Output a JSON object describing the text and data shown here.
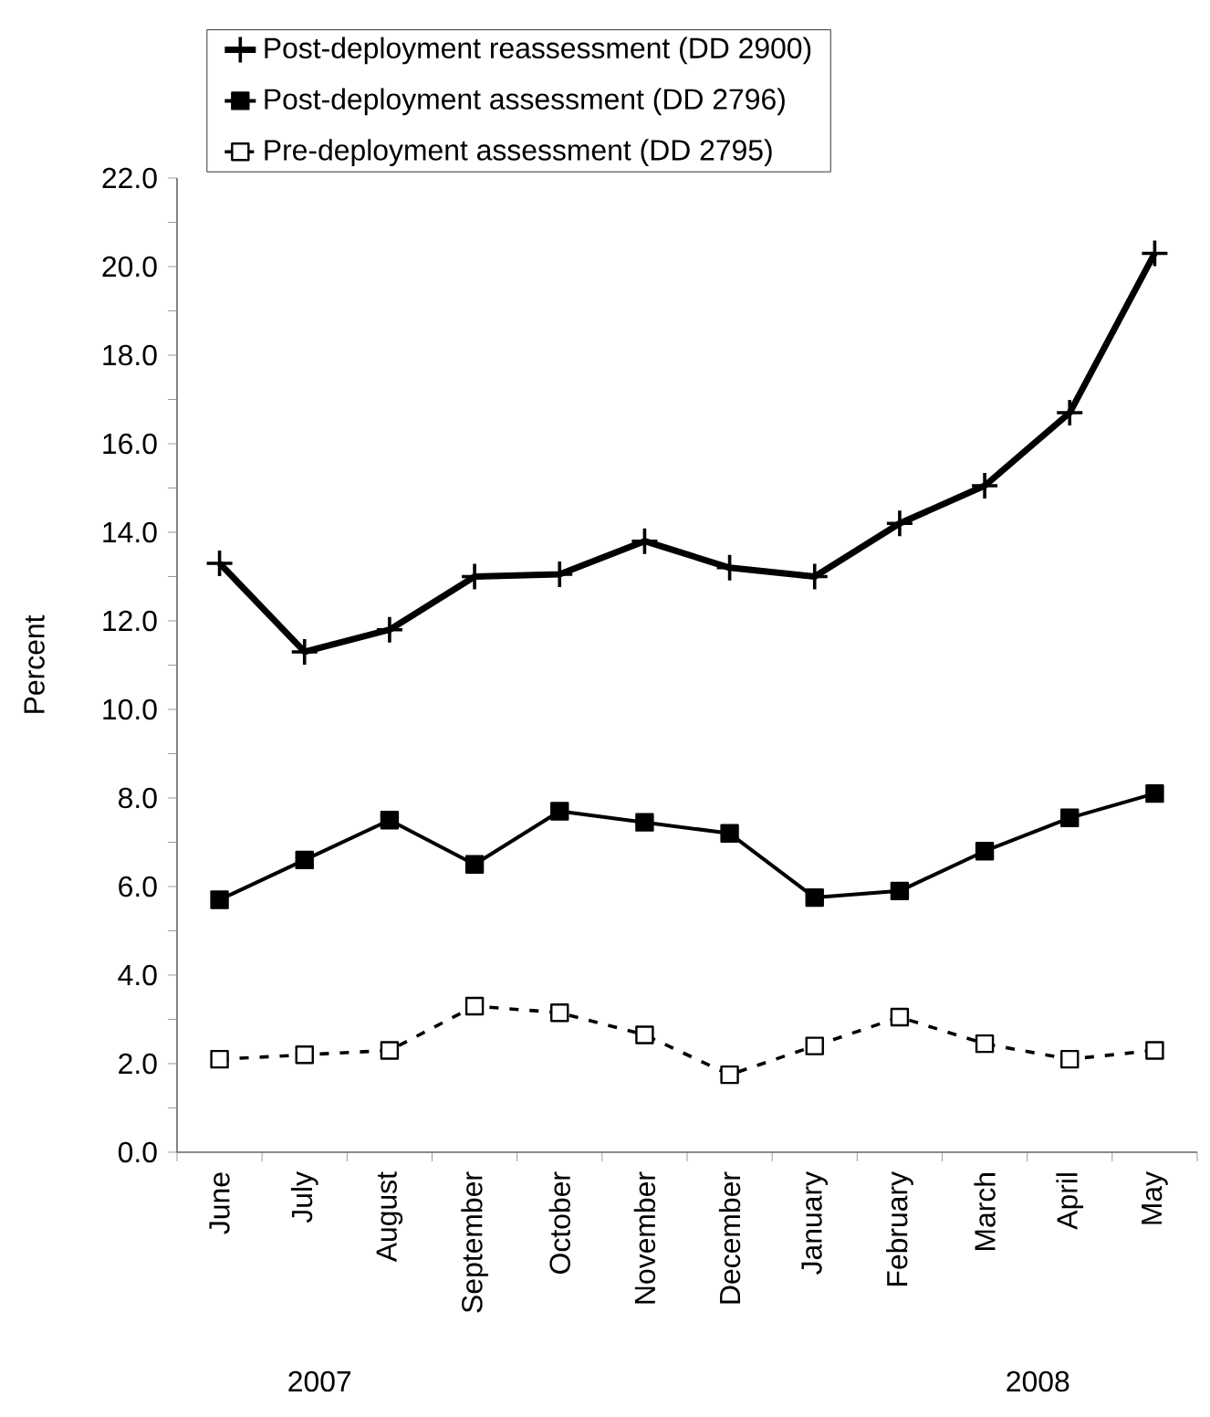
{
  "chart_data": {
    "type": "line",
    "ylabel": "Percent",
    "categories": [
      "June",
      "July",
      "August",
      "September",
      "October",
      "November",
      "December",
      "January",
      "February",
      "March",
      "April",
      "May"
    ],
    "series": [
      {
        "name": "Post-deployment reassessment (DD 2900)",
        "color": "#000000",
        "marker": "cross",
        "line_style": "solid",
        "values": [
          13.3,
          11.3,
          11.8,
          13.0,
          13.05,
          13.8,
          13.2,
          13.0,
          14.2,
          15.05,
          16.7,
          20.3
        ]
      },
      {
        "name": "Post-deployment assessment (DD 2796)",
        "color": "#000000",
        "marker": "square",
        "line_style": "solid",
        "values": [
          5.7,
          6.6,
          7.5,
          6.5,
          7.7,
          7.45,
          7.2,
          5.75,
          5.9,
          6.8,
          7.55,
          8.1
        ]
      },
      {
        "name": "Pre-deployment assessment (DD 2795)",
        "color": "#000000",
        "marker": "square",
        "line_style": "dashed",
        "values": [
          2.1,
          2.2,
          2.3,
          3.3,
          3.15,
          2.65,
          1.75,
          2.4,
          3.05,
          2.45,
          2.1,
          2.3
        ]
      }
    ],
    "ylim": [
      0,
      22
    ],
    "yticks": [
      {
        "value": 0,
        "label": "0.0"
      },
      {
        "value": 2,
        "label": "2.0"
      },
      {
        "value": 4,
        "label": "4.0"
      },
      {
        "value": 6,
        "label": "6.0"
      },
      {
        "value": 8,
        "label": "8.0"
      },
      {
        "value": 10,
        "label": "10.0"
      },
      {
        "value": 12,
        "label": "12.0"
      },
      {
        "value": 14,
        "label": "14.0"
      },
      {
        "value": 16,
        "label": "16.0"
      },
      {
        "value": 18,
        "label": "18.0"
      },
      {
        "value": 20,
        "label": "20.0"
      },
      {
        "value": 22,
        "label": "22.0"
      }
    ],
    "annotations": [
      "2007",
      "2008"
    ],
    "legend": "top",
    "grid": false
  }
}
